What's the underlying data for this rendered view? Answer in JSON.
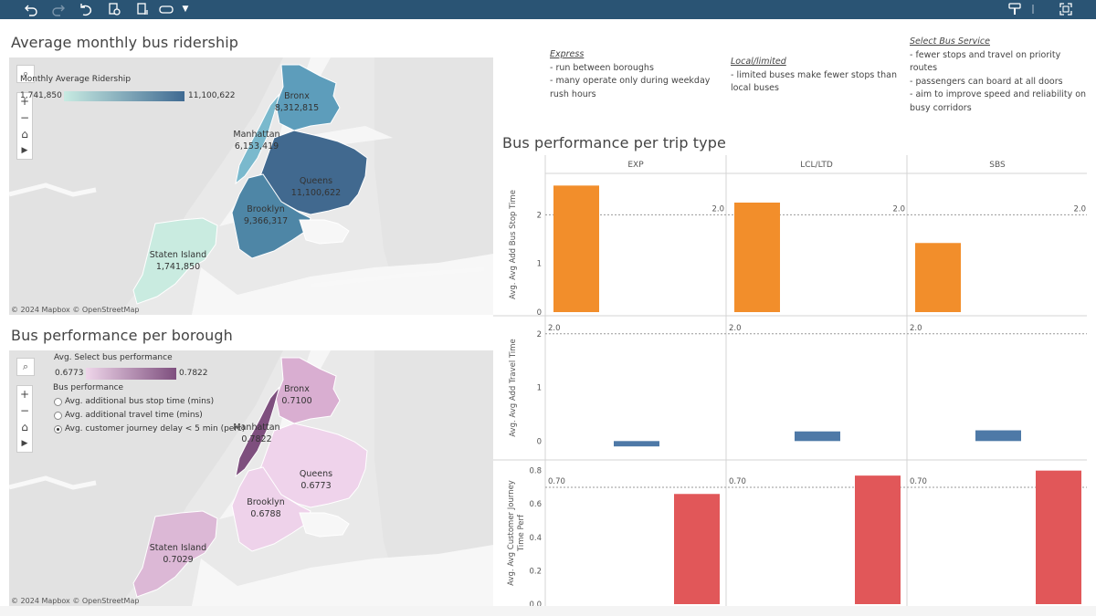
{
  "toolbar": {
    "icons": [
      "undo-icon",
      "redo-icon",
      "revert-icon",
      "refresh-icon",
      "pause-updates-icon",
      "toggle-icon",
      "dropdown-icon",
      "highlight-icon",
      "fullscreen-icon"
    ]
  },
  "ridership": {
    "title": "Average monthly bus ridership",
    "legend_title": "Monthly Average Ridership",
    "legend_min": "1,741,850",
    "legend_max": "11,100,622",
    "colors": {
      "low": "#c8ebe2",
      "high": "#3f6a92"
    },
    "attribution": "© 2024 Mapbox  © OpenStreetMap",
    "boroughs": [
      {
        "name": "Bronx",
        "value": "8,312,815",
        "color": "#5d9dbb"
      },
      {
        "name": "Manhattan",
        "value": "6,153,419",
        "color": "#7ab9cd"
      },
      {
        "name": "Queens",
        "value": "11,100,622",
        "color": "#41698f"
      },
      {
        "name": "Brooklyn",
        "value": "9,366,317",
        "color": "#4e86a6"
      },
      {
        "name": "Staten Island",
        "value": "1,741,850",
        "color": "#c9ebe0"
      }
    ]
  },
  "performance": {
    "title": "Bus performance per borough",
    "legend_title": "Avg. Select bus performance",
    "legend_min": "0.6773",
    "legend_max": "0.7822",
    "colors": {
      "low": "#efd6ea",
      "high": "#7e4f7e"
    },
    "param_title": "Bus performance",
    "options": [
      {
        "label": "Avg. additional bus stop time (mins)",
        "selected": false
      },
      {
        "label": "Avg. additional travel time (mins)",
        "selected": false
      },
      {
        "label": "Avg. customer journey delay < 5 min (perc)",
        "selected": true
      }
    ],
    "attribution": "© 2024 Mapbox  © OpenStreetMap",
    "boroughs": [
      {
        "name": "Bronx",
        "value": "0.7100",
        "color": "#d9aed1"
      },
      {
        "name": "Manhattan",
        "value": "0.7822",
        "color": "#7e4f7e"
      },
      {
        "name": "Queens",
        "value": "0.6773",
        "color": "#efd3eb"
      },
      {
        "name": "Brooklyn",
        "value": "0.6788",
        "color": "#eed2ea"
      },
      {
        "name": "Staten Island",
        "value": "0.7029",
        "color": "#dcb8d6"
      }
    ]
  },
  "notes": {
    "express": {
      "heading": "Express",
      "lines": [
        "- run between boroughs",
        "- many operate only during weekday",
        "rush hours"
      ]
    },
    "local": {
      "heading": "Local/limited",
      "lines": [
        "- limited buses make fewer stops than",
        "local buses"
      ]
    },
    "sbs": {
      "heading": "Select Bus Service",
      "lines": [
        "- fewer stops and travel on priority",
        "routes",
        "- passengers can board at all doors",
        "- aim to improve speed and reliability on",
        "busy corridors"
      ]
    }
  },
  "trip_chart": {
    "title": "Bus performance per trip type"
  },
  "chart_data": {
    "type": "bar",
    "categories": [
      "EXP",
      "LCL/LTD",
      "SBS"
    ],
    "series": [
      {
        "ylabel": "Avg. Avg Add Bus Stop Time",
        "values": [
          2.6,
          2.25,
          1.42
        ],
        "color": "#f28e2b",
        "ylim": [
          0,
          2.7
        ],
        "ticks": [
          "0",
          "1",
          "2"
        ],
        "reference": "2.0",
        "reference_value": 2.0
      },
      {
        "ylabel": "Avg. Avg Add Travel Time",
        "values": [
          -0.1,
          0.18,
          0.2
        ],
        "color": "#4e79a7",
        "ylim": [
          -0.25,
          2.2
        ],
        "ticks": [
          "0",
          "1",
          "2"
        ],
        "reference": "2.0",
        "reference_value": 2.0
      },
      {
        "ylabel": "Avg. Avg Customer Journey Time Perf",
        "values": [
          0.66,
          0.77,
          0.8
        ],
        "color": "#e15759",
        "ylim": [
          0,
          0.82
        ],
        "ticks": [
          "0.0",
          "0.2",
          "0.4",
          "0.6",
          "0.8"
        ],
        "reference": "0.70",
        "reference_value": 0.7
      }
    ]
  }
}
